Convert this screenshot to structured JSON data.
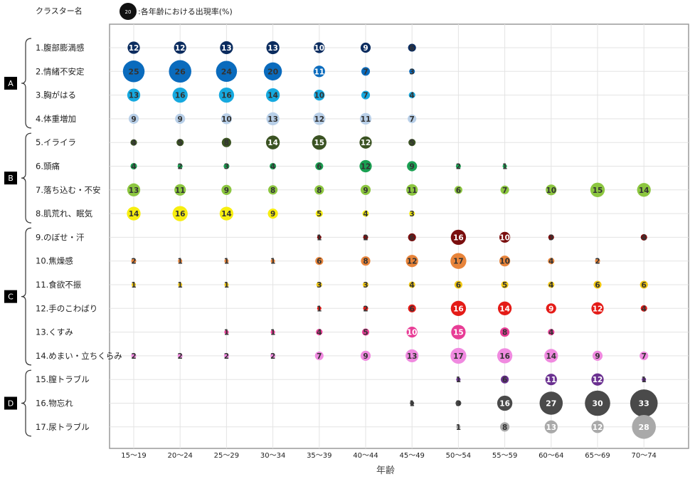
{
  "legend": {
    "cluster_label": "クラスター名",
    "bubble_example": "20",
    "bubble_caption": ":各年齢における出現率(%)"
  },
  "chart_data": {
    "type": "scatter",
    "xlabel": "年齢",
    "x_categories": [
      "15〜19",
      "20〜24",
      "25〜29",
      "30〜34",
      "35〜39",
      "40〜44",
      "45〜49",
      "50〜54",
      "55〜59",
      "60〜64",
      "65〜69",
      "70〜74"
    ],
    "clusters": [
      {
        "label": "A",
        "rows": [
          0,
          1,
          2,
          3
        ]
      },
      {
        "label": "B",
        "rows": [
          4,
          5,
          6,
          7
        ]
      },
      {
        "label": "C",
        "rows": [
          8,
          9,
          10,
          11,
          12,
          13
        ]
      },
      {
        "label": "D",
        "rows": [
          14,
          15,
          16
        ]
      }
    ],
    "series": [
      {
        "name": "1.腹部膨満感",
        "color": "#0b2c5f",
        "values": [
          12,
          12,
          13,
          13,
          10,
          9,
          6,
          null,
          null,
          null,
          null,
          null
        ]
      },
      {
        "name": "2.情緒不安定",
        "color": "#0a6bbd",
        "values": [
          25,
          26,
          24,
          20,
          11,
          7,
          3,
          null,
          null,
          null,
          null,
          null
        ]
      },
      {
        "name": "3.胸がはる",
        "color": "#16a9df",
        "values": [
          13,
          16,
          16,
          14,
          10,
          7,
          4,
          null,
          null,
          null,
          null,
          null
        ]
      },
      {
        "name": "4.体重増加",
        "color": "#b8cfe8",
        "values": [
          9,
          9,
          10,
          13,
          12,
          11,
          7,
          null,
          null,
          null,
          null,
          null
        ]
      },
      {
        "name": "5.イライラ",
        "color": "#3b5323",
        "values": [
          4,
          5,
          8,
          14,
          15,
          12,
          5,
          null,
          null,
          null,
          null,
          null
        ]
      },
      {
        "name": "6.頭痛",
        "color": "#1aa052",
        "values": [
          4,
          2,
          3,
          4,
          6,
          12,
          9,
          2,
          1,
          null,
          null,
          null
        ]
      },
      {
        "name": "7.落ち込む・不安",
        "color": "#8cc640",
        "values": [
          13,
          11,
          9,
          8,
          8,
          9,
          11,
          6,
          7,
          10,
          15,
          14
        ]
      },
      {
        "name": "8.肌荒れ、眠気",
        "color": "#f7ee10",
        "values": [
          14,
          16,
          14,
          9,
          5,
          4,
          3,
          null,
          null,
          null,
          null,
          null
        ]
      },
      {
        "name": "9.のぼせ・汗",
        "color": "#7a0e0e",
        "values": [
          null,
          null,
          null,
          null,
          1,
          2,
          6,
          16,
          10,
          3,
          null,
          4
        ]
      },
      {
        "name": "10.焦燥感",
        "color": "#e8843a",
        "values": [
          2,
          1,
          1,
          1,
          6,
          8,
          12,
          17,
          10,
          4,
          2,
          null
        ]
      },
      {
        "name": "11.食欲不振",
        "color": "#f2c811",
        "values": [
          1,
          1,
          1,
          null,
          3,
          3,
          4,
          6,
          5,
          4,
          6,
          6
        ]
      },
      {
        "name": "12.手のこわばり",
        "color": "#e41b17",
        "values": [
          null,
          null,
          null,
          null,
          1,
          2,
          6,
          16,
          14,
          9,
          12,
          4
        ]
      },
      {
        "name": "13.くすみ",
        "color": "#e83d96",
        "values": [
          null,
          null,
          1,
          1,
          4,
          5,
          10,
          15,
          8,
          4,
          null,
          null
        ]
      },
      {
        "name": "14.めまい・立ちくらみ",
        "color": "#f08ae0",
        "values": [
          2,
          2,
          2,
          2,
          7,
          9,
          13,
          17,
          16,
          14,
          9,
          7
        ]
      },
      {
        "name": "15.膣トラブル",
        "color": "#6a3090",
        "values": [
          null,
          null,
          null,
          null,
          null,
          null,
          null,
          1,
          6,
          11,
          12,
          1
        ]
      },
      {
        "name": "16.物忘れ",
        "color": "#4a4a4a",
        "values": [
          null,
          null,
          null,
          null,
          null,
          null,
          1,
          3,
          16,
          27,
          30,
          33
        ]
      },
      {
        "name": "17.尿トラブル",
        "color": "#a9a9a9",
        "values": [
          null,
          null,
          null,
          null,
          null,
          null,
          null,
          1,
          8,
          13,
          12,
          28
        ]
      }
    ]
  }
}
